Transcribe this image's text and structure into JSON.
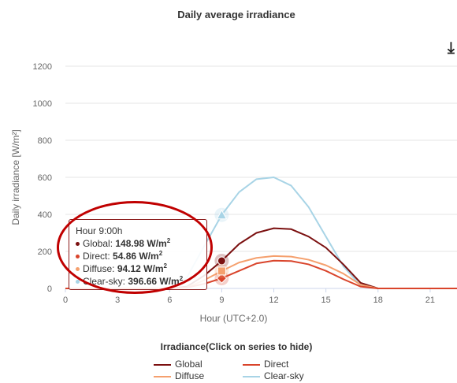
{
  "title": "Daily average irradiance",
  "chart_data": {
    "type": "line",
    "title": "Daily average irradiance",
    "xlabel": "Hour (UTC+2.0)",
    "ylabel": "Daily irradiance [W/m²]",
    "xlim": [
      0,
      23
    ],
    "ylim": [
      0,
      1200
    ],
    "xticks": [
      0,
      3,
      6,
      9,
      12,
      15,
      18,
      21
    ],
    "yticks": [
      0,
      200,
      400,
      600,
      800,
      1000,
      1200
    ],
    "grid": "horizontal",
    "legend_title": "Irradiance(Click on series to hide)",
    "legend_placement": "bottom",
    "series": [
      {
        "name": "Global",
        "color": "#7b1010",
        "marker": "circle",
        "x": [
          0,
          1,
          2,
          3,
          4,
          5,
          6,
          7,
          8,
          9,
          10,
          11,
          12,
          13,
          14,
          15,
          16,
          17,
          18,
          19,
          20,
          21,
          22,
          23
        ],
        "y": [
          0,
          0,
          0,
          0,
          0,
          0,
          0,
          10,
          70,
          149,
          240,
          300,
          325,
          320,
          280,
          220,
          130,
          30,
          0,
          0,
          0,
          0,
          0,
          0
        ]
      },
      {
        "name": "Direct",
        "color": "#d9442b",
        "marker": "diamond",
        "x": [
          0,
          1,
          2,
          3,
          4,
          5,
          6,
          7,
          8,
          9,
          10,
          11,
          12,
          13,
          14,
          15,
          16,
          17,
          18,
          19,
          20,
          21,
          22,
          23
        ],
        "y": [
          0,
          0,
          0,
          0,
          0,
          0,
          0,
          5,
          25,
          55,
          95,
          135,
          150,
          148,
          130,
          95,
          50,
          10,
          0,
          0,
          0,
          0,
          0,
          0
        ]
      },
      {
        "name": "Diffuse",
        "color": "#f5a06e",
        "marker": "square",
        "x": [
          0,
          1,
          2,
          3,
          4,
          5,
          6,
          7,
          8,
          9,
          10,
          11,
          12,
          13,
          14,
          15,
          16,
          17,
          18,
          19,
          20,
          21,
          22,
          23
        ],
        "y": [
          0,
          0,
          0,
          0,
          0,
          0,
          0,
          5,
          45,
          94,
          140,
          165,
          175,
          172,
          155,
          125,
          80,
          20,
          0,
          0,
          0,
          0,
          0,
          0
        ]
      },
      {
        "name": "Clear-sky",
        "color": "#a8d4e6",
        "marker": "triangle",
        "x": [
          0,
          1,
          2,
          3,
          4,
          5,
          6,
          7,
          8,
          9,
          10,
          11,
          12,
          13,
          14,
          15,
          16,
          17,
          18,
          19,
          20,
          21,
          22,
          23
        ],
        "y": [
          0,
          0,
          0,
          0,
          0,
          0,
          0,
          60,
          230,
          397,
          520,
          590,
          600,
          555,
          440,
          280,
          120,
          15,
          0,
          0,
          0,
          0,
          0,
          0
        ]
      }
    ],
    "tooltip": {
      "header": "Hour 9:00h",
      "x": 9,
      "rows": [
        {
          "label": "Global: ",
          "value": "148.98 W/m",
          "sup": "2",
          "color": "#7b1010"
        },
        {
          "label": "Direct: ",
          "value": "54.86 W/m",
          "sup": "2",
          "color": "#d9442b"
        },
        {
          "label": "Diffuse: ",
          "value": "94.12 W/m",
          "sup": "2",
          "color": "#f5a06e"
        },
        {
          "label": "Clear-sky: ",
          "value": "396.66 W/m",
          "sup": "2",
          "color": "#a8d4e6"
        }
      ]
    }
  },
  "annotation_color": "#c00000",
  "icons": {
    "download": "download-icon"
  }
}
